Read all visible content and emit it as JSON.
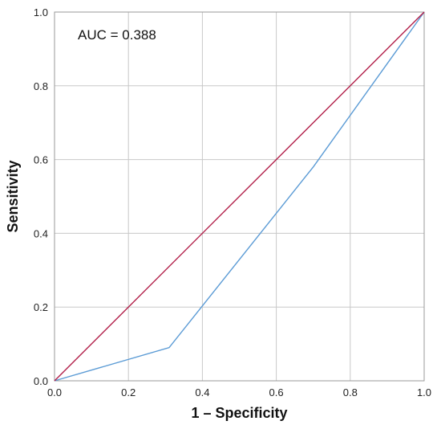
{
  "chart_data": {
    "type": "line",
    "xlabel": "1 – Specificity",
    "ylabel": "Sensitivity",
    "annotation": "AUC = 0.388",
    "xlim": [
      0.0,
      1.0
    ],
    "ylim": [
      0.0,
      1.0
    ],
    "x_ticks": [
      "0.0",
      "0.2",
      "0.4",
      "0.6",
      "0.8",
      "1.0"
    ],
    "y_ticks": [
      "0.0",
      "0.2",
      "0.4",
      "0.6",
      "0.8",
      "1.0"
    ],
    "grid": true,
    "series": [
      {
        "color": "#5b9bd5",
        "points": [
          [
            0.0,
            0.0
          ],
          [
            0.31,
            0.09
          ],
          [
            0.7,
            0.58
          ],
          [
            1.0,
            1.0
          ]
        ]
      },
      {
        "color": "#b2204a",
        "points": [
          [
            0.0,
            0.0
          ],
          [
            1.0,
            1.0
          ]
        ]
      }
    ]
  }
}
